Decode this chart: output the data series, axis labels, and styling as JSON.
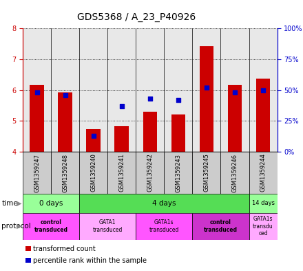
{
  "title": "GDS5368 / A_23_P40926",
  "samples": [
    "GSM1359247",
    "GSM1359248",
    "GSM1359240",
    "GSM1359241",
    "GSM1359242",
    "GSM1359243",
    "GSM1359245",
    "GSM1359246",
    "GSM1359244"
  ],
  "transformed_count": [
    6.18,
    5.92,
    4.75,
    4.83,
    5.3,
    5.2,
    7.42,
    6.17,
    6.38
  ],
  "percentile_rank": [
    48,
    46,
    13,
    37,
    43,
    42,
    52,
    48,
    50
  ],
  "ylim_left": [
    4,
    8
  ],
  "ylim_right": [
    0,
    100
  ],
  "yticks_left": [
    4,
    5,
    6,
    7,
    8
  ],
  "yticks_right": [
    0,
    25,
    50,
    75,
    100
  ],
  "yticklabels_right": [
    "0%",
    "25%",
    "50%",
    "75%",
    "100%"
  ],
  "bar_color": "#cc0000",
  "dot_color": "#0000cc",
  "bar_bottom": 4.0,
  "time_groups": [
    {
      "label": "0 days",
      "start": 0,
      "end": 2,
      "color": "#99ff99"
    },
    {
      "label": "4 days",
      "start": 2,
      "end": 8,
      "color": "#55dd55"
    },
    {
      "label": "14 days",
      "start": 8,
      "end": 9,
      "color": "#99ff99"
    }
  ],
  "protocol_groups": [
    {
      "label": "control\ntransduced",
      "start": 0,
      "end": 2,
      "color": "#ff55ff",
      "bold": true
    },
    {
      "label": "GATA1\ntransduced",
      "start": 2,
      "end": 4,
      "color": "#ffaaff",
      "bold": false
    },
    {
      "label": "GATA1s\ntransduced",
      "start": 4,
      "end": 6,
      "color": "#ff55ff",
      "bold": false
    },
    {
      "label": "control\ntransduced",
      "start": 6,
      "end": 8,
      "color": "#cc33cc",
      "bold": true
    },
    {
      "label": "GATA1s\ntransdu\nced",
      "start": 8,
      "end": 9,
      "color": "#ffaaff",
      "bold": false
    }
  ],
  "legend_items": [
    {
      "color": "#cc0000",
      "label": "transformed count"
    },
    {
      "color": "#0000cc",
      "label": "percentile rank within the sample"
    }
  ],
  "chart_bg": "#e8e8e8",
  "xlabel_color_left": "#cc0000",
  "xlabel_color_right": "#0000cc",
  "title_fontsize": 10,
  "tick_fontsize": 7,
  "sample_fontsize": 6,
  "legend_fontsize": 7
}
